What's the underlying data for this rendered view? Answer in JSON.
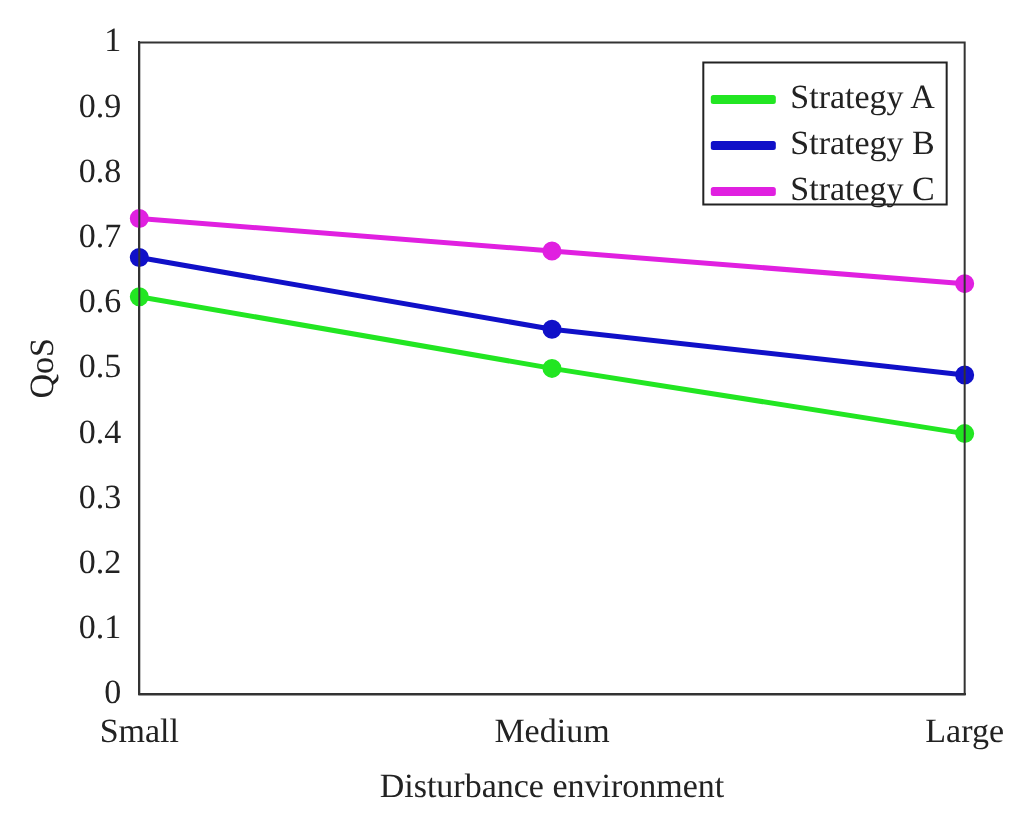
{
  "chart_data": {
    "type": "line",
    "xlabel": "Disturbance environment",
    "ylabel": "QoS",
    "categories": [
      "Small",
      "Medium",
      "Large"
    ],
    "series": [
      {
        "name": "Strategy A",
        "color": "#22e622",
        "values": [
          0.61,
          0.5,
          0.4
        ]
      },
      {
        "name": "Strategy B",
        "color": "#1010c8",
        "values": [
          0.67,
          0.56,
          0.49
        ]
      },
      {
        "name": "Strategy C",
        "color": "#e020e0",
        "values": [
          0.73,
          0.68,
          0.63
        ]
      }
    ],
    "ylim": [
      0,
      1
    ],
    "yticks": [
      0,
      0.1,
      0.2,
      0.3,
      0.4,
      0.5,
      0.6,
      0.7,
      0.8,
      0.9,
      1
    ],
    "grid": false,
    "legend": "top right",
    "marker": "circle",
    "line_style": "solid"
  }
}
